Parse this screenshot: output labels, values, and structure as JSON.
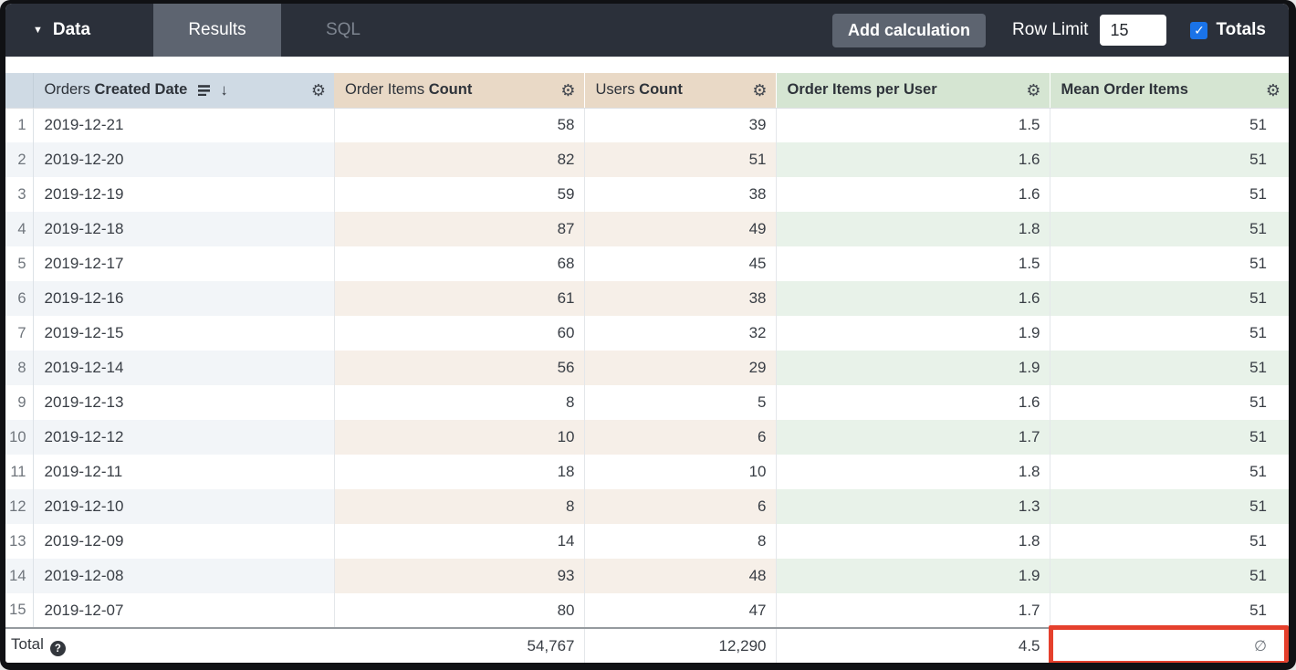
{
  "topbar": {
    "data_label": "Data",
    "tabs": [
      {
        "label": "Results",
        "active": true
      },
      {
        "label": "SQL",
        "active": false
      }
    ],
    "add_calculation_label": "Add calculation",
    "row_limit_label": "Row Limit",
    "row_limit_value": "15",
    "totals_label": "Totals",
    "totals_checked": true
  },
  "icons": {
    "caret_down": "▼",
    "arrow_down": "↓",
    "gear": "⚙",
    "check": "✓",
    "help": "?"
  },
  "table": {
    "columns": [
      {
        "prefix": "Orders ",
        "label": "Created Date",
        "group": "dimension",
        "sorted": true,
        "sort_direction": "desc"
      },
      {
        "prefix": "Order Items ",
        "label": "Count",
        "group": "measure",
        "sorted": false
      },
      {
        "prefix": "Users ",
        "label": "Count",
        "group": "measure",
        "sorted": false
      },
      {
        "prefix": "",
        "label": "Order Items per User",
        "group": "calculation",
        "sorted": false
      },
      {
        "prefix": "",
        "label": "Mean Order Items",
        "group": "calculation",
        "sorted": false
      }
    ],
    "rows": [
      {
        "num": "1",
        "cells": [
          "2019-12-21",
          "58",
          "39",
          "1.5",
          "51"
        ]
      },
      {
        "num": "2",
        "cells": [
          "2019-12-20",
          "82",
          "51",
          "1.6",
          "51"
        ]
      },
      {
        "num": "3",
        "cells": [
          "2019-12-19",
          "59",
          "38",
          "1.6",
          "51"
        ]
      },
      {
        "num": "4",
        "cells": [
          "2019-12-18",
          "87",
          "49",
          "1.8",
          "51"
        ]
      },
      {
        "num": "5",
        "cells": [
          "2019-12-17",
          "68",
          "45",
          "1.5",
          "51"
        ]
      },
      {
        "num": "6",
        "cells": [
          "2019-12-16",
          "61",
          "38",
          "1.6",
          "51"
        ]
      },
      {
        "num": "7",
        "cells": [
          "2019-12-15",
          "60",
          "32",
          "1.9",
          "51"
        ]
      },
      {
        "num": "8",
        "cells": [
          "2019-12-14",
          "56",
          "29",
          "1.9",
          "51"
        ]
      },
      {
        "num": "9",
        "cells": [
          "2019-12-13",
          "8",
          "5",
          "1.6",
          "51"
        ]
      },
      {
        "num": "10",
        "cells": [
          "2019-12-12",
          "10",
          "6",
          "1.7",
          "51"
        ]
      },
      {
        "num": "11",
        "cells": [
          "2019-12-11",
          "18",
          "10",
          "1.8",
          "51"
        ]
      },
      {
        "num": "12",
        "cells": [
          "2019-12-10",
          "8",
          "6",
          "1.3",
          "51"
        ]
      },
      {
        "num": "13",
        "cells": [
          "2019-12-09",
          "14",
          "8",
          "1.8",
          "51"
        ]
      },
      {
        "num": "14",
        "cells": [
          "2019-12-08",
          "93",
          "48",
          "1.9",
          "51"
        ]
      },
      {
        "num": "15",
        "cells": [
          "2019-12-07",
          "80",
          "47",
          "1.7",
          "51"
        ]
      }
    ],
    "total_row": {
      "label": "Total",
      "cells": [
        "54,767",
        "12,290",
        "4.5",
        "∅"
      ],
      "highlighted_cell_index": 3
    }
  },
  "colors": {
    "topbar_bg": "#2b303a",
    "tab_active_bg": "#5d6470",
    "accent_blue": "#1a73e8",
    "dimension_header_bg": "#cfdae4",
    "measure_header_bg": "#e9d9c6",
    "calculation_header_bg": "#d5e5d2",
    "dimension_stripe": "#f2f5f8",
    "measure_stripe": "#f6efe8",
    "calculation_stripe": "#e8f2e9",
    "highlight_red": "#e5402d"
  }
}
